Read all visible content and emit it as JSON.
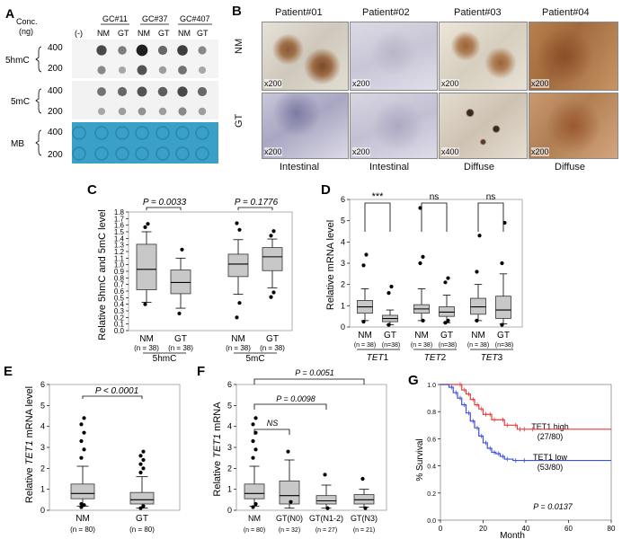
{
  "panelA": {
    "letter": "A",
    "conc_label_1": "Conc.",
    "conc_label_2": "(ng)",
    "neg_label": "(-)",
    "groups": [
      "GC#11",
      "GC#37",
      "GC#407"
    ],
    "lanes": [
      "NM",
      "GT",
      "NM",
      "GT",
      "NM",
      "GT"
    ],
    "rows": [
      {
        "name": "5hmC",
        "concs": [
          "400",
          "200"
        ]
      },
      {
        "name": "5mC",
        "concs": [
          "400",
          "200"
        ]
      },
      {
        "name": "MB",
        "concs": [
          "400",
          "200"
        ]
      }
    ],
    "mb_color": "#3aa0c8",
    "dot_intensity": {
      "5hmC_400": [
        0,
        0.75,
        0.5,
        0.95,
        0.6,
        0.8,
        0.45
      ],
      "5hmC_200": [
        0,
        0.45,
        0.3,
        0.7,
        0.35,
        0.55,
        0.3
      ],
      "5mC_400": [
        0,
        0.55,
        0.6,
        0.7,
        0.65,
        0.75,
        0.6
      ],
      "5mC_200": [
        0,
        0.3,
        0.35,
        0.4,
        0.35,
        0.45,
        0.35
      ]
    }
  },
  "panelB": {
    "letter": "B",
    "patients": [
      "Patient#01",
      "Patient#02",
      "Patient#03",
      "Patient#04"
    ],
    "row_labels": [
      "NM",
      "GT"
    ],
    "magnifications": {
      "NM": [
        "",
        "",
        "",
        ""
      ],
      "GT": [
        "x200",
        "x200",
        "x400",
        "x200"
      ],
      "NM_mag": [
        "x200",
        "x200",
        "x200",
        "x200"
      ]
    },
    "types": [
      "Intestinal",
      "Intestinal",
      "Diffuse",
      "Diffuse"
    ]
  },
  "panelC": {
    "letter": "C",
    "ylabel": "Relative 5hmC and 5mC level",
    "ylim": [
      0,
      1.8
    ],
    "yticks": [
      "0.0",
      "0.1",
      "0.2",
      "0.3",
      "0.4",
      "0.5",
      "0.6",
      "0.7",
      "0.8",
      "0.9",
      "1.0",
      "1.1",
      "1.2",
      "1.3",
      "1.4",
      "1.5",
      "1.6",
      "1.7",
      "1.8"
    ],
    "pvalues": [
      "P = 0.0033",
      "P = 0.1776"
    ],
    "groups": [
      "5hmC",
      "5mC"
    ],
    "categories": [
      "NM",
      "GT",
      "NM",
      "GT"
    ],
    "ns": [
      "(n = 38)",
      "(n = 38)",
      "(n = 38)",
      "(n = 38)"
    ]
  },
  "panelD": {
    "letter": "D",
    "ylabel": "Relative mRNA level",
    "ylim": [
      0,
      6
    ],
    "yticks": [
      "0",
      "1",
      "2",
      "3",
      "4",
      "5",
      "6"
    ],
    "sig": [
      "***",
      "ns",
      "ns"
    ],
    "categories": [
      "NM",
      "GT",
      "NM",
      "GT",
      "NM",
      "GT"
    ],
    "ns": [
      "(n = 38)",
      "(n=38)",
      "(n = 38)",
      "(n=38)",
      "(n = 38)",
      "(n=38)"
    ],
    "genes": [
      "TET",
      "1",
      "TET",
      "2",
      "TET",
      "3"
    ]
  },
  "panelE": {
    "letter": "E",
    "ylabel_pre": "Relative ",
    "ylabel_it": "TET1",
    "ylabel_post": " mRNA level",
    "ylim": [
      0,
      6
    ],
    "yticks": [
      "0",
      "1",
      "2",
      "3",
      "4",
      "5",
      "6"
    ],
    "pvalue": "P < 0.0001",
    "categories": [
      "NM",
      "GT"
    ],
    "ns": [
      "(n = 80)",
      "(n = 80)"
    ]
  },
  "panelF": {
    "letter": "F",
    "ylabel_pre": "Relative ",
    "ylabel_it": "TET1",
    "ylabel_post": " mRNA",
    "ylim": [
      0,
      6
    ],
    "yticks": [
      "0",
      "1",
      "2",
      "3",
      "4",
      "5",
      "6"
    ],
    "pvalues": [
      "P = 0.0051",
      "P = 0.0098",
      "NS"
    ],
    "categories": [
      "NM",
      "GT(N0)",
      "GT(N1-2)",
      "GT(N3)"
    ],
    "ns": [
      "(n = 80)",
      "(n = 32)",
      "(n = 27)",
      "(n = 21)"
    ]
  },
  "panelG": {
    "letter": "G",
    "ylabel": "% Survival",
    "xlabel": "Month",
    "xticks": [
      "0",
      "20",
      "40",
      "60",
      "80"
    ],
    "yticks": [
      "0.0",
      "0.2",
      "0.4",
      "0.6",
      "0.8",
      "1.0"
    ],
    "high_label": "TET1 high",
    "high_n": "(27/80)",
    "low_label": "TET1 low",
    "low_n": "(53/80)",
    "pvalue": "P = 0.0137",
    "colors": {
      "high": "#e8393b",
      "low": "#3b4fe0"
    }
  },
  "chart_data": [
    {
      "type": "box",
      "panel": "C",
      "ylabel": "Relative 5hmC and 5mC level",
      "ylim": [
        0,
        1.8
      ],
      "categories": [
        "NM",
        "GT",
        "NM",
        "GT"
      ],
      "groups": [
        "5hmC",
        "5hmC",
        "5mC",
        "5mC"
      ],
      "boxes": [
        {
          "whislo": 0.43,
          "q1": 0.62,
          "med": 0.93,
          "q3": 1.31,
          "whishi": 1.5,
          "fliers": [
            0.4,
            1.62,
            1.57
          ]
        },
        {
          "whislo": 0.34,
          "q1": 0.56,
          "med": 0.73,
          "q3": 0.92,
          "whishi": 1.1,
          "fliers": [
            0.26,
            1.23
          ]
        },
        {
          "whislo": 0.55,
          "q1": 0.82,
          "med": 1.01,
          "q3": 1.16,
          "whishi": 1.38,
          "fliers": [
            0.2,
            0.42,
            1.63,
            1.53
          ]
        },
        {
          "whislo": 0.65,
          "q1": 0.91,
          "med": 1.12,
          "q3": 1.26,
          "whishi": 1.39,
          "fliers": [
            0.51,
            0.58,
            1.44,
            1.51
          ]
        }
      ]
    },
    {
      "type": "box",
      "panel": "D",
      "ylabel": "Relative mRNA level",
      "ylim": [
        0,
        6
      ],
      "categories": [
        "NM",
        "GT",
        "NM",
        "GT",
        "NM",
        "GT"
      ],
      "boxes": [
        {
          "whislo": 0.3,
          "q1": 0.65,
          "med": 0.95,
          "q3": 1.25,
          "whishi": 1.8,
          "fliers": [
            2.9,
            3.4,
            0.25
          ]
        },
        {
          "whislo": 0.1,
          "q1": 0.25,
          "med": 0.4,
          "q3": 0.55,
          "whishi": 0.8,
          "fliers": [
            1.6,
            1.9,
            0.1
          ]
        },
        {
          "whislo": 0.3,
          "q1": 0.65,
          "med": 0.85,
          "q3": 1.05,
          "whishi": 1.8,
          "fliers": [
            3.0,
            3.3,
            5.6,
            0.3
          ]
        },
        {
          "whislo": 0.2,
          "q1": 0.5,
          "med": 0.7,
          "q3": 0.95,
          "whishi": 1.5,
          "fliers": [
            2.1,
            2.3,
            0.2,
            0.3
          ]
        },
        {
          "whislo": 0.3,
          "q1": 0.6,
          "med": 0.95,
          "q3": 1.35,
          "whishi": 2.0,
          "fliers": [
            2.6,
            4.3,
            0.3
          ]
        },
        {
          "whislo": 0.15,
          "q1": 0.4,
          "med": 0.8,
          "q3": 1.45,
          "whishi": 2.5,
          "fliers": [
            3.0,
            4.9,
            0.1
          ]
        }
      ]
    },
    {
      "type": "box",
      "panel": "E",
      "ylabel": "Relative TET1 mRNA level",
      "ylim": [
        0,
        6
      ],
      "categories": [
        "NM",
        "GT"
      ],
      "boxes": [
        {
          "whislo": 0.2,
          "q1": 0.55,
          "med": 0.8,
          "q3": 1.25,
          "whishi": 2.1,
          "fliers": [
            2.5,
            2.9,
            3.3,
            3.7,
            4.1,
            4.4,
            0.15,
            0.25,
            0.3
          ]
        },
        {
          "whislo": 0.1,
          "q1": 0.3,
          "med": 0.5,
          "q3": 0.85,
          "whishi": 1.6,
          "fliers": [
            1.8,
            2.0,
            2.2,
            2.4,
            2.6,
            2.8,
            0.1,
            0.2
          ]
        }
      ]
    },
    {
      "type": "box",
      "panel": "F",
      "ylabel": "Relative TET1 mRNA",
      "ylim": [
        0,
        6
      ],
      "categories": [
        "NM",
        "GT(N0)",
        "GT(N1-2)",
        "GT(N3)"
      ],
      "boxes": [
        {
          "whislo": 0.2,
          "q1": 0.55,
          "med": 0.8,
          "q3": 1.25,
          "whishi": 2.1,
          "fliers": [
            2.5,
            2.9,
            3.3,
            3.7,
            4.1,
            4.4,
            0.15,
            0.3
          ]
        },
        {
          "whislo": 0.1,
          "q1": 0.3,
          "med": 0.7,
          "q3": 1.4,
          "whishi": 2.4,
          "fliers": [
            2.8,
            0.4
          ]
        },
        {
          "whislo": 0.1,
          "q1": 0.3,
          "med": 0.45,
          "q3": 0.7,
          "whishi": 1.2,
          "fliers": [
            1.7,
            0.1
          ]
        },
        {
          "whislo": 0.15,
          "q1": 0.3,
          "med": 0.5,
          "q3": 0.75,
          "whishi": 1.0,
          "fliers": [
            1.5,
            0.1
          ]
        }
      ]
    },
    {
      "type": "line",
      "panel": "G",
      "xlabel": "Month",
      "ylabel": "% Survival",
      "xlim": [
        0,
        80
      ],
      "ylim": [
        0,
        1
      ],
      "series": [
        {
          "name": "TET1 high",
          "x": [
            0,
            8,
            10,
            12,
            14,
            16,
            18,
            20,
            22,
            24,
            28,
            30,
            34,
            36,
            38,
            42,
            80
          ],
          "y": [
            1.0,
            1.0,
            0.96,
            0.93,
            0.89,
            0.85,
            0.82,
            0.78,
            0.78,
            0.74,
            0.74,
            0.7,
            0.7,
            0.67,
            0.67,
            0.67,
            0.67
          ]
        },
        {
          "name": "TET1 low",
          "x": [
            0,
            4,
            6,
            8,
            10,
            12,
            14,
            16,
            18,
            20,
            22,
            24,
            26,
            28,
            30,
            34,
            38,
            80
          ],
          "y": [
            1.0,
            0.98,
            0.94,
            0.9,
            0.85,
            0.79,
            0.73,
            0.68,
            0.62,
            0.57,
            0.53,
            0.5,
            0.49,
            0.47,
            0.45,
            0.44,
            0.44,
            0.44
          ]
        }
      ]
    }
  ]
}
